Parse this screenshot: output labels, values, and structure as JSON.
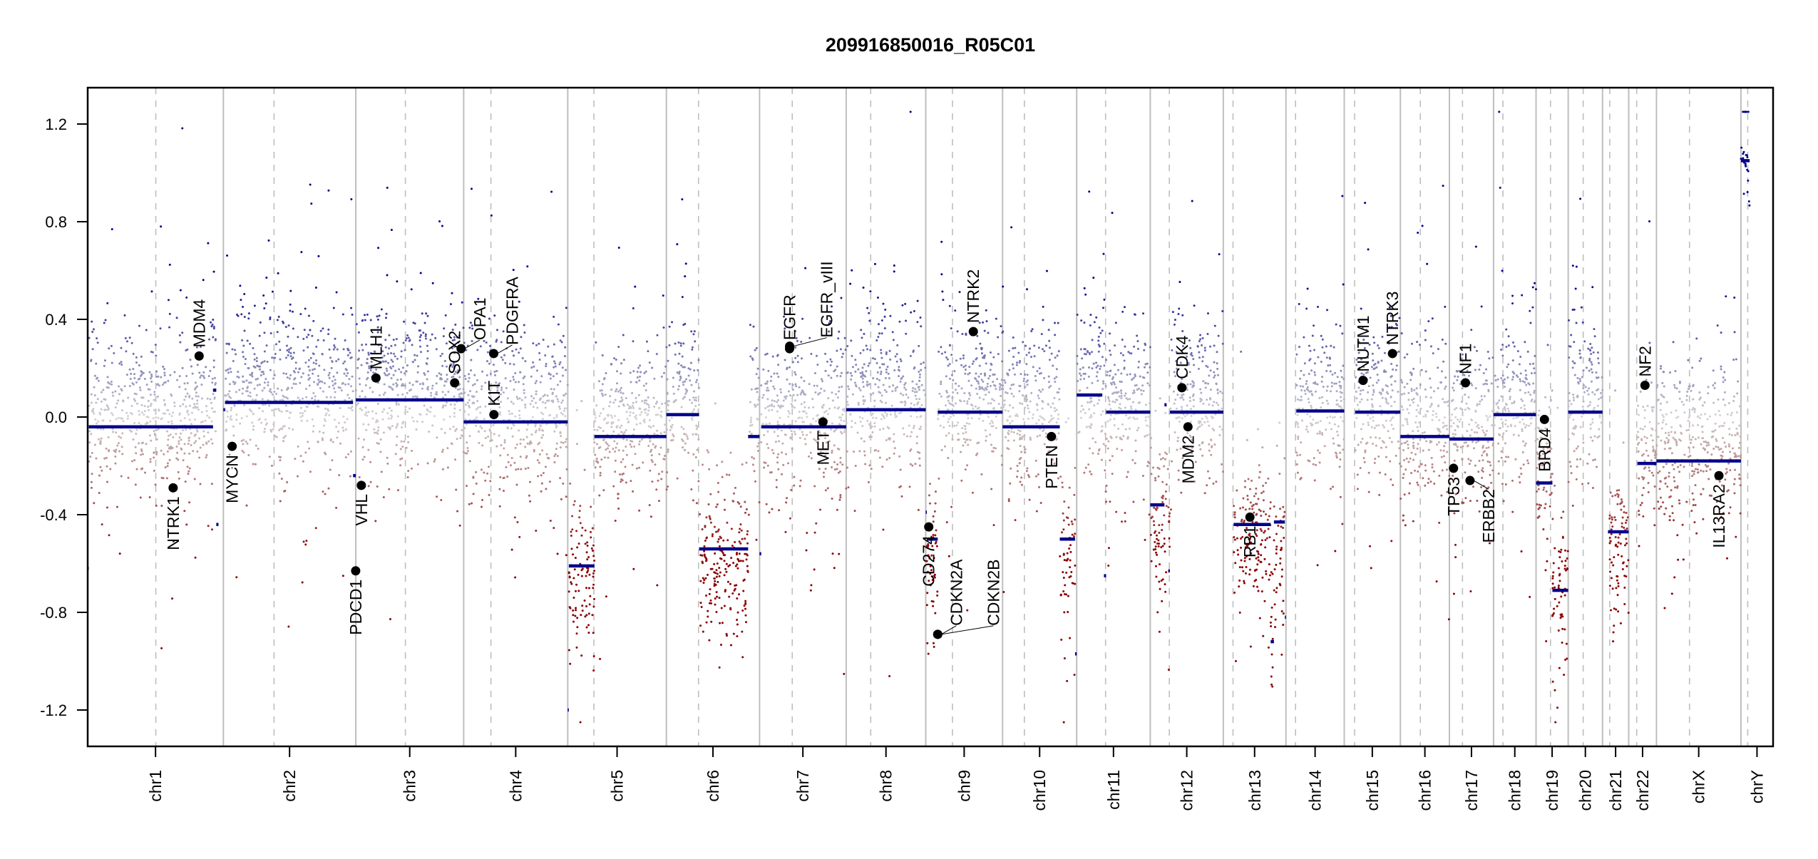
{
  "chart_data": {
    "type": "scatter",
    "title": "209916850016_R05C01",
    "xlabel": "",
    "ylabel": "",
    "ylim": [
      -1.35,
      1.35
    ],
    "y_ticks": [
      "-1.2",
      "-0.8",
      "-0.4",
      "0.0",
      "0.4",
      "0.8",
      "1.2"
    ],
    "x_unit": "Mb",
    "grid": false,
    "chromosomes": [
      {
        "name": "chr1",
        "length": 249,
        "centromere": 125
      },
      {
        "name": "chr2",
        "length": 243,
        "centromere": 93
      },
      {
        "name": "chr3",
        "length": 198,
        "centromere": 91
      },
      {
        "name": "chr4",
        "length": 191,
        "centromere": 50
      },
      {
        "name": "chr5",
        "length": 181,
        "centromere": 48
      },
      {
        "name": "chr6",
        "length": 171,
        "centromere": 59
      },
      {
        "name": "chr7",
        "length": 159,
        "centromere": 60
      },
      {
        "name": "chr8",
        "length": 146,
        "centromere": 45
      },
      {
        "name": "chr9",
        "length": 141,
        "centromere": 49
      },
      {
        "name": "chr10",
        "length": 136,
        "centromere": 40
      },
      {
        "name": "chr11",
        "length": 135,
        "centromere": 53
      },
      {
        "name": "chr12",
        "length": 134,
        "centromere": 35
      },
      {
        "name": "chr13",
        "length": 115,
        "centromere": 17.9
      },
      {
        "name": "chr14",
        "length": 107,
        "centromere": 17.6
      },
      {
        "name": "chr15",
        "length": 103,
        "centromere": 19
      },
      {
        "name": "chr16",
        "length": 90,
        "centromere": 36.6
      },
      {
        "name": "chr17",
        "length": 81,
        "centromere": 24
      },
      {
        "name": "chr18",
        "length": 78,
        "centromere": 17.2
      },
      {
        "name": "chr19",
        "length": 59,
        "centromere": 26.5
      },
      {
        "name": "chr20",
        "length": 63,
        "centromere": 27.5
      },
      {
        "name": "chr21",
        "length": 48,
        "centromere": 13.2
      },
      {
        "name": "chr22",
        "length": 51,
        "centromere": 14.7
      },
      {
        "name": "chrX",
        "length": 155,
        "centromere": 60.6
      },
      {
        "name": "chrY",
        "length": 59,
        "centromere": 12.5
      }
    ],
    "segments": [
      {
        "chr": "chr1",
        "start": 0,
        "end": 2,
        "value": -0.62
      },
      {
        "chr": "chr1",
        "start": 2,
        "end": 230,
        "value": -0.04
      },
      {
        "chr": "chr1",
        "start": 230,
        "end": 236,
        "value": 0.11
      },
      {
        "chr": "chr1",
        "start": 236,
        "end": 240,
        "value": -0.44
      },
      {
        "chr": "chr2",
        "start": 0,
        "end": 3,
        "value": 0.03
      },
      {
        "chr": "chr2",
        "start": 3,
        "end": 238,
        "value": 0.06
      },
      {
        "chr": "chr2",
        "start": 238,
        "end": 243,
        "value": -0.24
      },
      {
        "chr": "chr3",
        "start": 0,
        "end": 198,
        "value": 0.07
      },
      {
        "chr": "chr4",
        "start": 0,
        "end": 191,
        "value": -0.02
      },
      {
        "chr": "chr5",
        "start": 0,
        "end": 2,
        "value": -1.2
      },
      {
        "chr": "chr5",
        "start": 2,
        "end": 49,
        "value": -0.61
      },
      {
        "chr": "chr5",
        "start": 49,
        "end": 181,
        "value": -0.08
      },
      {
        "chr": "chr6",
        "start": 0,
        "end": 60,
        "value": 0.01
      },
      {
        "chr": "chr6",
        "start": 60,
        "end": 150,
        "value": -0.54
      },
      {
        "chr": "chr6",
        "start": 150,
        "end": 171,
        "value": -0.08
      },
      {
        "chr": "chr7",
        "start": 0,
        "end": 3,
        "value": -0.56
      },
      {
        "chr": "chr7",
        "start": 3,
        "end": 159,
        "value": -0.04
      },
      {
        "chr": "chr8",
        "start": 0,
        "end": 146,
        "value": 0.03
      },
      {
        "chr": "chr9",
        "start": 0,
        "end": 2,
        "value": -0.39
      },
      {
        "chr": "chr9",
        "start": 2,
        "end": 22,
        "value": -0.5
      },
      {
        "chr": "chr9",
        "start": 22,
        "end": 141,
        "value": 0.02
      },
      {
        "chr": "chr10",
        "start": 0,
        "end": 105,
        "value": -0.04
      },
      {
        "chr": "chr10",
        "start": 105,
        "end": 133,
        "value": -0.5
      },
      {
        "chr": "chr10",
        "start": 133,
        "end": 136,
        "value": -0.97
      },
      {
        "chr": "chr11",
        "start": 0,
        "end": 47,
        "value": 0.09
      },
      {
        "chr": "chr11",
        "start": 50,
        "end": 54,
        "value": -0.65
      },
      {
        "chr": "chr11",
        "start": 54,
        "end": 135,
        "value": 0.02
      },
      {
        "chr": "chr12",
        "start": 0,
        "end": 26,
        "value": -0.36
      },
      {
        "chr": "chr12",
        "start": 26,
        "end": 30,
        "value": 0.05
      },
      {
        "chr": "chr12",
        "start": 33,
        "end": 36,
        "value": -0.63
      },
      {
        "chr": "chr12",
        "start": 36,
        "end": 134,
        "value": 0.02
      },
      {
        "chr": "chr13",
        "start": 19,
        "end": 87,
        "value": -0.44
      },
      {
        "chr": "chr13",
        "start": 87,
        "end": 93,
        "value": -0.92
      },
      {
        "chr": "chr13",
        "start": 93,
        "end": 113,
        "value": -0.43
      },
      {
        "chr": "chr13",
        "start": 113,
        "end": 115,
        "value": -0.82
      },
      {
        "chr": "chr14",
        "start": 19,
        "end": 107,
        "value": 0.025
      },
      {
        "chr": "chr15",
        "start": 20,
        "end": 103,
        "value": 0.02
      },
      {
        "chr": "chr16",
        "start": 0,
        "end": 90,
        "value": -0.08
      },
      {
        "chr": "chr17",
        "start": 0,
        "end": 81,
        "value": -0.09
      },
      {
        "chr": "chr18",
        "start": 0,
        "end": 78,
        "value": 0.01
      },
      {
        "chr": "chr19",
        "start": 0,
        "end": 30,
        "value": -0.27
      },
      {
        "chr": "chr19",
        "start": 30,
        "end": 59,
        "value": -0.71
      },
      {
        "chr": "chr20",
        "start": 0,
        "end": 63,
        "value": 0.02
      },
      {
        "chr": "chr21",
        "start": 10,
        "end": 48,
        "value": -0.47
      },
      {
        "chr": "chr22",
        "start": 16,
        "end": 51,
        "value": -0.19
      },
      {
        "chr": "chrX",
        "start": 0,
        "end": 155,
        "value": -0.18
      },
      {
        "chr": "chrY",
        "start": 0,
        "end": 16,
        "value": 1.05
      }
    ],
    "genes": [
      {
        "name": "MDM4",
        "chr": "chr1",
        "pos": 204.5,
        "value": 0.25
      },
      {
        "name": "NTRK1",
        "chr": "chr1",
        "pos": 156.8,
        "value": -0.29
      },
      {
        "name": "MYCN",
        "chr": "chr2",
        "pos": 16.1,
        "value": -0.12
      },
      {
        "name": "PDCD1",
        "chr": "chr2",
        "pos": 242.8,
        "value": -0.63
      },
      {
        "name": "VHL",
        "chr": "chr3",
        "pos": 10.2,
        "value": -0.28
      },
      {
        "name": "MLH1",
        "chr": "chr3",
        "pos": 37.0,
        "value": 0.16
      },
      {
        "name": "SOX2",
        "chr": "chr3",
        "pos": 181.4,
        "value": 0.14
      },
      {
        "name": "OPA1",
        "chr": "chr3",
        "pos": 193.3,
        "value": 0.28
      },
      {
        "name": "PDGFRA",
        "chr": "chr4",
        "pos": 55.1,
        "value": 0.26
      },
      {
        "name": "KIT",
        "chr": "chr4",
        "pos": 55.5,
        "value": 0.01
      },
      {
        "name": "EGFR",
        "chr": "chr7",
        "pos": 55.1,
        "value": 0.28
      },
      {
        "name": "EGFR_vIII",
        "chr": "chr7",
        "pos": 55.2,
        "value": 0.29
      },
      {
        "name": "MET",
        "chr": "chr7",
        "pos": 116.3,
        "value": -0.02
      },
      {
        "name": "CD274",
        "chr": "chr9",
        "pos": 5.5,
        "value": -0.45
      },
      {
        "name": "CDKN2A",
        "chr": "chr9",
        "pos": 21.97,
        "value": -0.89
      },
      {
        "name": "CDKN2B",
        "chr": "chr9",
        "pos": 22.0,
        "value": -0.89
      },
      {
        "name": "NTRK2",
        "chr": "chr9",
        "pos": 87.3,
        "value": 0.35
      },
      {
        "name": "PTEN",
        "chr": "chr10",
        "pos": 89.6,
        "value": -0.08
      },
      {
        "name": "CDK4",
        "chr": "chr12",
        "pos": 58.1,
        "value": 0.12
      },
      {
        "name": "MDM2",
        "chr": "chr12",
        "pos": 69.2,
        "value": -0.04
      },
      {
        "name": "RB1",
        "chr": "chr13",
        "pos": 48.9,
        "value": -0.41
      },
      {
        "name": "NUTM1",
        "chr": "chr15",
        "pos": 34.6,
        "value": 0.15
      },
      {
        "name": "NTRK3",
        "chr": "chr15",
        "pos": 88.5,
        "value": 0.26
      },
      {
        "name": "TP53",
        "chr": "chr17",
        "pos": 7.6,
        "value": -0.21
      },
      {
        "name": "NF1",
        "chr": "chr17",
        "pos": 29.5,
        "value": 0.14
      },
      {
        "name": "ERBB2",
        "chr": "chr17",
        "pos": 37.8,
        "value": -0.26
      },
      {
        "name": "BRD4",
        "chr": "chr19",
        "pos": 15.4,
        "value": -0.01
      },
      {
        "name": "NF2",
        "chr": "chr22",
        "pos": 29.9,
        "value": 0.13
      },
      {
        "name": "IL13RA2",
        "chr": "chrX",
        "pos": 114.6,
        "value": -0.24
      }
    ],
    "colors": {
      "gain": "#00008b",
      "loss": "#8b0000",
      "neutral": "#d3d3d3",
      "segment": "#00008b",
      "gene_point": "#000000",
      "chromosome_boundary": "#bebebe",
      "centromere": "#bebebe"
    }
  }
}
